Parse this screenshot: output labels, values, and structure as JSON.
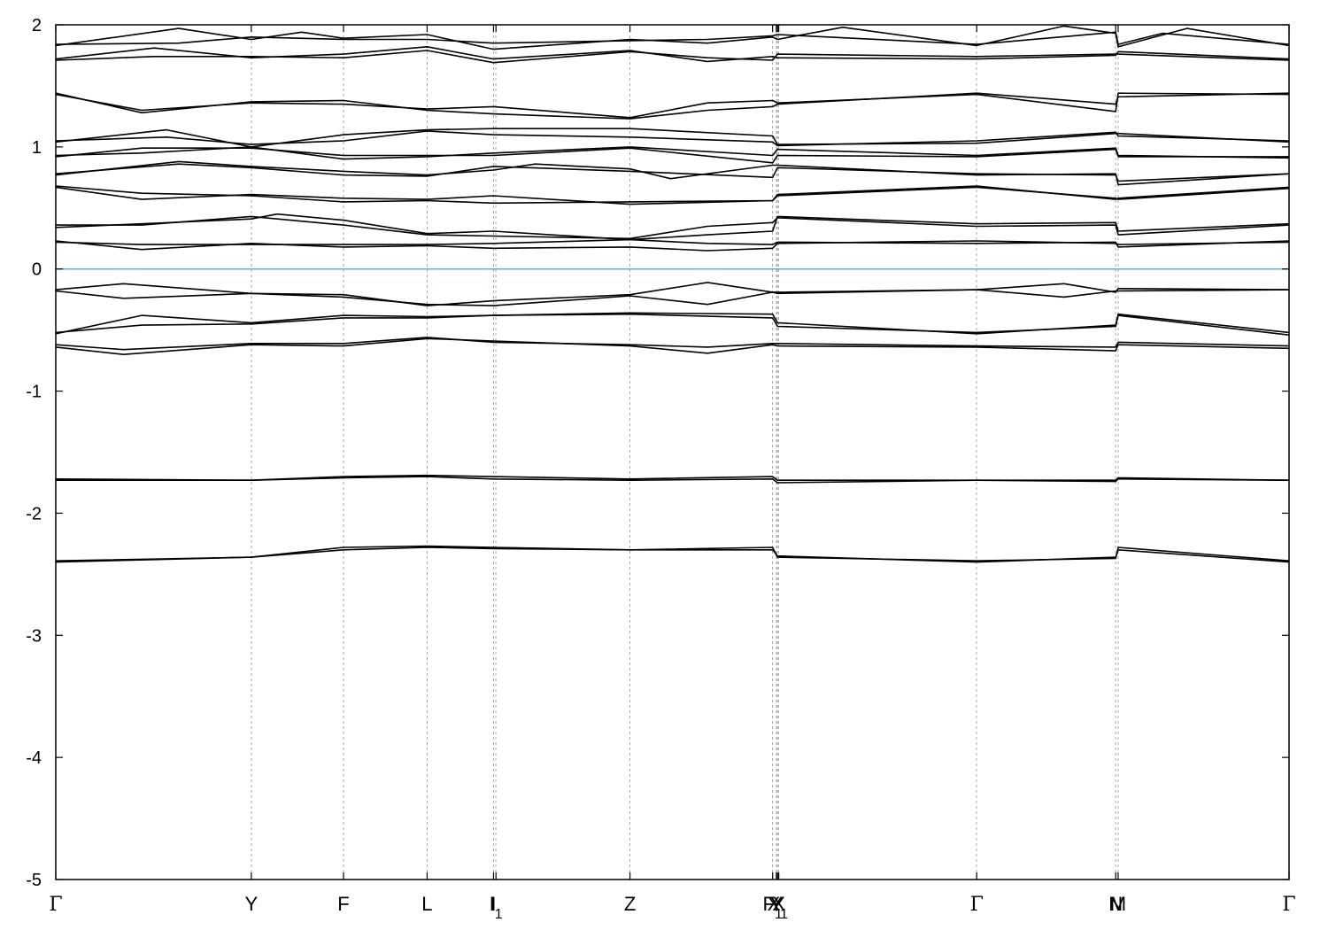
{
  "chart_data": {
    "type": "line",
    "title": "",
    "xlabel": "",
    "ylabel": "",
    "ylim": [
      -5,
      2
    ],
    "y_ticks": [
      {
        "value": 2,
        "label": "2"
      },
      {
        "value": 1,
        "label": "1"
      },
      {
        "value": 0,
        "label": "0"
      },
      {
        "value": -1,
        "label": "-1"
      },
      {
        "value": -2,
        "label": "-2"
      },
      {
        "value": -3,
        "label": "-3"
      },
      {
        "value": -4,
        "label": "-4"
      },
      {
        "value": -5,
        "label": "-5"
      }
    ],
    "xlim": [
      0,
      10.03
    ],
    "x_ticks": [
      {
        "x": 0.0,
        "label": "Γ",
        "sub": ""
      },
      {
        "x": 1.59,
        "label": "Y",
        "sub": ""
      },
      {
        "x": 2.34,
        "label": "F",
        "sub": ""
      },
      {
        "x": 3.02,
        "label": "L",
        "sub": ""
      },
      {
        "x": 3.56,
        "label": "I",
        "sub": ""
      },
      {
        "x": 3.58,
        "label": "I",
        "sub": "1"
      },
      {
        "x": 4.67,
        "label": "Z",
        "sub": ""
      },
      {
        "x": 5.83,
        "label": "F",
        "sub": "1"
      },
      {
        "x": 5.86,
        "label": "Y",
        "sub": ""
      },
      {
        "x": 5.87,
        "label": "X",
        "sub": "1"
      },
      {
        "x": 5.88,
        "label": "X",
        "sub": ""
      },
      {
        "x": 7.49,
        "label": "Γ",
        "sub": ""
      },
      {
        "x": 8.62,
        "label": "N",
        "sub": ""
      },
      {
        "x": 8.64,
        "label": "M",
        "sub": ""
      },
      {
        "x": 10.03,
        "label": "Γ",
        "sub": ""
      }
    ],
    "fermi_level": 0,
    "fermi_color": "#5bb4c8",
    "band_color": "#000000",
    "grid_color": "#aaaaaa",
    "grid": "vertical dashed at high-symmetry points",
    "legend": "none",
    "bands": [
      {
        "x": [
          0,
          1.59,
          2.34,
          3.02,
          3.56,
          4.67,
          5.83,
          5.87,
          7.49,
          8.62,
          8.64,
          10.03
        ],
        "y": [
          -2.4,
          -2.36,
          -2.3,
          -2.28,
          -2.29,
          -2.3,
          -2.3,
          -2.35,
          -2.4,
          -2.36,
          -2.3,
          -2.4
        ]
      },
      {
        "x": [
          0,
          1.59,
          2.34,
          3.02,
          3.56,
          4.67,
          5.83,
          5.87,
          7.49,
          8.62,
          8.64,
          10.03
        ],
        "y": [
          -2.39,
          -2.36,
          -2.28,
          -2.27,
          -2.28,
          -2.3,
          -2.28,
          -2.36,
          -2.39,
          -2.37,
          -2.28,
          -2.39
        ]
      },
      {
        "x": [
          0,
          1.59,
          2.34,
          3.02,
          3.56,
          4.67,
          5.83,
          5.87,
          7.49,
          8.62,
          8.64,
          10.03
        ],
        "y": [
          -1.73,
          -1.73,
          -1.71,
          -1.7,
          -1.72,
          -1.73,
          -1.72,
          -1.75,
          -1.73,
          -1.74,
          -1.72,
          -1.73
        ]
      },
      {
        "x": [
          0,
          1.59,
          2.34,
          3.02,
          3.56,
          4.67,
          5.83,
          5.87,
          7.49,
          8.62,
          8.64,
          10.03
        ],
        "y": [
          -1.72,
          -1.73,
          -1.7,
          -1.69,
          -1.7,
          -1.72,
          -1.7,
          -1.73,
          -1.73,
          -1.73,
          -1.71,
          -1.73
        ]
      },
      {
        "x": [
          0,
          0.55,
          1.59,
          2.34,
          3.02,
          3.56,
          4.67,
          5.3,
          5.83,
          5.87,
          7.49,
          8.62,
          8.64,
          10.03
        ],
        "y": [
          -0.64,
          -0.7,
          -0.62,
          -0.63,
          -0.57,
          -0.59,
          -0.63,
          -0.69,
          -0.62,
          -0.63,
          -0.64,
          -0.67,
          -0.62,
          -0.65
        ]
      },
      {
        "x": [
          0,
          0.55,
          1.59,
          2.34,
          3.02,
          3.56,
          4.67,
          5.3,
          5.83,
          5.87,
          7.49,
          8.62,
          8.64,
          10.03
        ],
        "y": [
          -0.62,
          -0.66,
          -0.61,
          -0.61,
          -0.56,
          -0.6,
          -0.62,
          -0.64,
          -0.61,
          -0.61,
          -0.63,
          -0.64,
          -0.6,
          -0.63
        ]
      },
      {
        "x": [
          0,
          0.7,
          1.59,
          2.34,
          3.02,
          3.56,
          4.67,
          5.83,
          5.87,
          7.49,
          8.62,
          8.64,
          10.03
        ],
        "y": [
          -0.53,
          -0.38,
          -0.44,
          -0.38,
          -0.39,
          -0.38,
          -0.36,
          -0.37,
          -0.44,
          -0.53,
          -0.46,
          -0.37,
          -0.52
        ]
      },
      {
        "x": [
          0,
          0.7,
          1.59,
          2.34,
          3.02,
          3.56,
          4.67,
          5.83,
          5.87,
          7.49,
          8.62,
          8.64,
          10.03
        ],
        "y": [
          -0.52,
          -0.46,
          -0.45,
          -0.4,
          -0.4,
          -0.38,
          -0.37,
          -0.4,
          -0.47,
          -0.52,
          -0.47,
          -0.38,
          -0.54
        ]
      },
      {
        "x": [
          0,
          0.55,
          1.59,
          2.34,
          3.02,
          3.56,
          4.67,
          5.3,
          5.83,
          5.87,
          7.49,
          8.2,
          8.62,
          8.64,
          10.03
        ],
        "y": [
          -0.17,
          -0.12,
          -0.2,
          -0.21,
          -0.3,
          -0.26,
          -0.21,
          -0.11,
          -0.19,
          -0.19,
          -0.17,
          -0.12,
          -0.19,
          -0.16,
          -0.17
        ]
      },
      {
        "x": [
          0,
          0.55,
          1.59,
          2.34,
          3.02,
          3.56,
          4.67,
          5.3,
          5.83,
          5.87,
          7.49,
          8.2,
          8.62,
          8.64,
          10.03
        ],
        "y": [
          -0.18,
          -0.24,
          -0.2,
          -0.23,
          -0.29,
          -0.3,
          -0.22,
          -0.29,
          -0.19,
          -0.2,
          -0.17,
          -0.23,
          -0.18,
          -0.18,
          -0.17
        ]
      },
      {
        "x": [
          0,
          0.7,
          1.59,
          2.34,
          3.02,
          3.56,
          4.67,
          5.3,
          5.83,
          5.87,
          7.49,
          8.62,
          8.64,
          10.03
        ],
        "y": [
          0.23,
          0.16,
          0.21,
          0.18,
          0.19,
          0.17,
          0.18,
          0.15,
          0.17,
          0.21,
          0.23,
          0.21,
          0.2,
          0.22
        ]
      },
      {
        "x": [
          0,
          0.7,
          1.59,
          2.34,
          3.02,
          3.56,
          4.67,
          5.3,
          5.83,
          5.87,
          7.49,
          8.62,
          8.64,
          10.03
        ],
        "y": [
          0.22,
          0.2,
          0.2,
          0.2,
          0.2,
          0.21,
          0.24,
          0.21,
          0.2,
          0.22,
          0.21,
          0.22,
          0.18,
          0.23
        ]
      },
      {
        "x": [
          0,
          0.7,
          1.59,
          2.34,
          3.02,
          3.56,
          4.67,
          5.3,
          5.83,
          5.87,
          7.49,
          8.62,
          8.64,
          10.03
        ],
        "y": [
          0.36,
          0.36,
          0.43,
          0.36,
          0.28,
          0.27,
          0.25,
          0.35,
          0.38,
          0.42,
          0.35,
          0.36,
          0.28,
          0.36
        ]
      },
      {
        "x": [
          0,
          0.7,
          1.59,
          1.8,
          2.34,
          3.02,
          3.56,
          4.67,
          5.3,
          5.83,
          5.87,
          7.49,
          8.62,
          8.64,
          10.03
        ],
        "y": [
          0.34,
          0.37,
          0.41,
          0.45,
          0.4,
          0.29,
          0.31,
          0.24,
          0.28,
          0.31,
          0.43,
          0.37,
          0.38,
          0.31,
          0.37
        ]
      },
      {
        "x": [
          0,
          0.7,
          1.59,
          2.34,
          3.02,
          3.56,
          4.67,
          5.83,
          5.87,
          7.49,
          8.62,
          8.64,
          10.03
        ],
        "y": [
          0.67,
          0.57,
          0.61,
          0.58,
          0.57,
          0.6,
          0.53,
          0.56,
          0.61,
          0.68,
          0.57,
          0.58,
          0.67
        ]
      },
      {
        "x": [
          0,
          0.7,
          1.59,
          2.34,
          3.02,
          3.56,
          4.67,
          5.83,
          5.87,
          7.49,
          8.62,
          8.64,
          10.03
        ],
        "y": [
          0.68,
          0.62,
          0.6,
          0.55,
          0.56,
          0.54,
          0.55,
          0.56,
          0.6,
          0.67,
          0.58,
          0.57,
          0.66
        ]
      },
      {
        "x": [
          0,
          1.0,
          1.59,
          2.34,
          3.02,
          3.56,
          3.9,
          4.67,
          5.0,
          5.83,
          5.87,
          7.49,
          8.62,
          8.64,
          10.03
        ],
        "y": [
          0.77,
          0.88,
          0.84,
          0.8,
          0.77,
          0.81,
          0.86,
          0.82,
          0.74,
          0.85,
          0.85,
          0.77,
          0.78,
          0.69,
          0.78
        ]
      },
      {
        "x": [
          0,
          1.0,
          1.59,
          2.34,
          3.02,
          3.56,
          4.67,
          5.83,
          5.87,
          7.49,
          8.62,
          8.64,
          10.03
        ],
        "y": [
          0.78,
          0.86,
          0.83,
          0.77,
          0.76,
          0.84,
          0.8,
          0.75,
          0.83,
          0.78,
          0.77,
          0.72,
          0.78
        ]
      },
      {
        "x": [
          0,
          0.7,
          1.59,
          2.34,
          3.02,
          3.56,
          4.67,
          5.83,
          5.87,
          7.49,
          8.62,
          8.64,
          10.03
        ],
        "y": [
          0.92,
          0.99,
          0.99,
          0.93,
          0.93,
          0.93,
          0.99,
          0.87,
          0.93,
          0.92,
          0.98,
          0.92,
          0.92
        ]
      },
      {
        "x": [
          0,
          0.7,
          1.59,
          2.34,
          3.02,
          3.56,
          4.67,
          5.83,
          5.87,
          7.49,
          8.62,
          8.64,
          10.03
        ],
        "y": [
          0.93,
          0.95,
          1.0,
          0.9,
          0.92,
          0.95,
          1.0,
          0.93,
          0.98,
          0.93,
          0.99,
          0.93,
          0.91
        ]
      },
      {
        "x": [
          0,
          0.9,
          1.59,
          2.34,
          3.02,
          3.56,
          4.67,
          5.83,
          5.87,
          7.49,
          8.62,
          8.64,
          10.03
        ],
        "y": [
          1.04,
          1.14,
          1.0,
          1.1,
          1.14,
          1.15,
          1.15,
          1.09,
          1.02,
          1.03,
          1.11,
          1.11,
          1.04
        ]
      },
      {
        "x": [
          0,
          0.9,
          1.59,
          2.34,
          3.02,
          3.56,
          4.67,
          5.83,
          5.87,
          7.49,
          8.62,
          8.64,
          10.03
        ],
        "y": [
          1.05,
          1.08,
          1.02,
          1.05,
          1.13,
          1.1,
          1.08,
          1.04,
          1.01,
          1.05,
          1.12,
          1.09,
          1.05
        ]
      },
      {
        "x": [
          0,
          0.7,
          1.59,
          2.34,
          3.02,
          3.56,
          4.67,
          5.3,
          5.83,
          5.87,
          7.49,
          8.62,
          8.64,
          10.03
        ],
        "y": [
          1.43,
          1.3,
          1.36,
          1.35,
          1.31,
          1.33,
          1.24,
          1.36,
          1.38,
          1.36,
          1.43,
          1.29,
          1.44,
          1.43
        ]
      },
      {
        "x": [
          0,
          0.7,
          1.59,
          2.34,
          3.02,
          3.56,
          4.67,
          5.3,
          5.83,
          5.87,
          7.49,
          8.62,
          8.64,
          10.03
        ],
        "y": [
          1.44,
          1.28,
          1.37,
          1.38,
          1.3,
          1.27,
          1.23,
          1.3,
          1.33,
          1.35,
          1.44,
          1.35,
          1.41,
          1.44
        ]
      },
      {
        "x": [
          0,
          0.8,
          1.59,
          2.34,
          3.02,
          3.56,
          4.67,
          5.3,
          5.83,
          5.87,
          7.49,
          8.62,
          8.64,
          10.03
        ],
        "y": [
          1.72,
          1.81,
          1.73,
          1.76,
          1.82,
          1.72,
          1.79,
          1.7,
          1.74,
          1.73,
          1.72,
          1.75,
          1.78,
          1.72
        ]
      },
      {
        "x": [
          0,
          0.8,
          1.59,
          2.34,
          3.02,
          3.56,
          4.67,
          5.3,
          5.83,
          5.87,
          7.49,
          8.62,
          8.64,
          10.03
        ],
        "y": [
          1.71,
          1.74,
          1.74,
          1.73,
          1.79,
          1.69,
          1.78,
          1.73,
          1.71,
          1.76,
          1.74,
          1.76,
          1.76,
          1.71
        ]
      },
      {
        "x": [
          0,
          1.0,
          1.59,
          2.0,
          2.34,
          3.02,
          3.56,
          4.67,
          5.3,
          5.83,
          5.87,
          6.4,
          7.49,
          8.2,
          8.62,
          8.64,
          9.2,
          10.03
        ],
        "y": [
          1.83,
          1.97,
          1.88,
          1.94,
          1.89,
          1.92,
          1.8,
          1.88,
          1.85,
          1.9,
          1.88,
          1.98,
          1.83,
          1.99,
          1.93,
          1.82,
          1.97,
          1.83
        ]
      },
      {
        "x": [
          0,
          1.0,
          1.59,
          2.34,
          3.02,
          3.56,
          4.67,
          5.3,
          5.83,
          5.87,
          7.49,
          8.62,
          8.64,
          9.0,
          10.03
        ],
        "y": [
          1.84,
          1.85,
          1.9,
          1.88,
          1.88,
          1.85,
          1.87,
          1.88,
          1.91,
          1.92,
          1.84,
          1.94,
          1.84,
          1.93,
          1.84
        ]
      }
    ]
  }
}
